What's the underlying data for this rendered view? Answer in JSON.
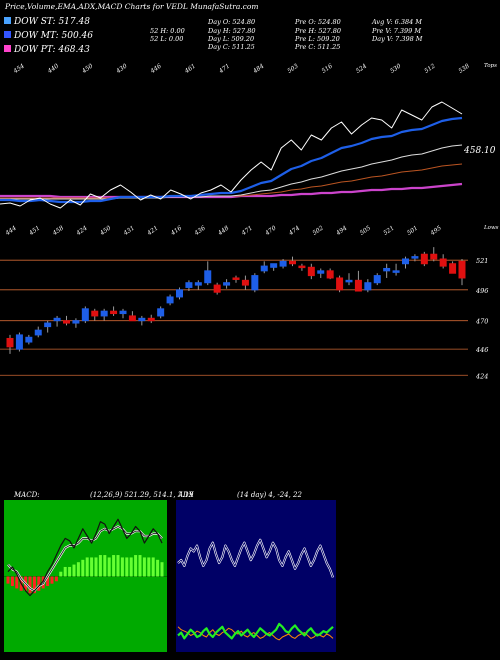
{
  "header": {
    "title": "Price,Volume,EMA,ADX,MACD Charts for VEDL MunafaSutra.com",
    "legend": [
      {
        "label": "DOW ST: 517.48",
        "color": "#4aa3ff"
      },
      {
        "label": "DOW MT: 500.46",
        "color": "#3355ff"
      },
      {
        "label": "DOW PT: 468.43",
        "color": "#ff44cc"
      }
    ],
    "stats": [
      [
        "Day O: 524.80",
        "Pre O: 524.80",
        "Avg V: 6.384 M"
      ],
      [
        "52 H: 0.00",
        "Day H: 527.80",
        "Pre H: 527.80",
        "Pre V: 7.399 M"
      ],
      [
        "52 L: 0.00",
        "Day L: 509.20",
        "Pre L: 509.20",
        "Day V: 7.398 M"
      ],
      [
        "Day C: 511.25",
        "Pre C: 511.25"
      ]
    ]
  },
  "colors": {
    "up": "#1e5fe8",
    "down": "#e01010",
    "price_line": "#ffffff",
    "macd_bg": "#00aa00",
    "adx_bg": "#000066",
    "ref_line": "#cc6633",
    "ema_fast": "#1e5fe8",
    "ema_long": "#cc44cc"
  },
  "chart_data": [
    {
      "type": "line",
      "name": "price_ema_panel",
      "top_labels": [
        "454",
        "440",
        "450",
        "430",
        "446",
        "461",
        "471",
        "484",
        "503",
        "516",
        "524",
        "530",
        "512",
        "538"
      ],
      "right_label": "Tops",
      "value_label": "458.10",
      "price": [
        436,
        437,
        434,
        440,
        442,
        436,
        432,
        440,
        435,
        446,
        442,
        450,
        455,
        448,
        440,
        445,
        441,
        450,
        446,
        441,
        447,
        450,
        455,
        448,
        460,
        470,
        478,
        470,
        492,
        500,
        490,
        505,
        500,
        512,
        518,
        506,
        515,
        522,
        520,
        512,
        530,
        525,
        520,
        533,
        538,
        532,
        526
      ],
      "ema1": [
        440,
        440,
        439,
        439,
        440,
        439,
        438,
        438,
        438,
        439,
        439,
        441,
        443,
        443,
        443,
        443,
        443,
        444,
        444,
        444,
        445,
        446,
        447,
        447,
        449,
        453,
        457,
        459,
        465,
        471,
        474,
        479,
        482,
        487,
        492,
        494,
        497,
        501,
        503,
        504,
        508,
        510,
        511,
        515,
        519,
        521,
        522
      ],
      "ema2": [
        441,
        441,
        441,
        441,
        441,
        441,
        441,
        441,
        441,
        441,
        441,
        441,
        442,
        442,
        442,
        442,
        442,
        443,
        443,
        443,
        443,
        444,
        444,
        444,
        445,
        447,
        449,
        450,
        453,
        456,
        458,
        461,
        463,
        466,
        469,
        471,
        473,
        476,
        478,
        480,
        483,
        485,
        486,
        489,
        492,
        494,
        495
      ],
      "ema3": [
        442,
        442,
        442,
        442,
        442,
        442,
        442,
        442,
        442,
        442,
        442,
        442,
        442,
        443,
        443,
        443,
        443,
        443,
        443,
        443,
        443,
        444,
        444,
        444,
        444,
        445,
        446,
        447,
        448,
        450,
        451,
        453,
        454,
        456,
        458,
        459,
        461,
        463,
        464,
        466,
        468,
        469,
        470,
        472,
        474,
        475,
        476
      ],
      "ema_long": [
        444,
        444,
        444,
        444,
        444,
        444,
        443,
        443,
        443,
        443,
        443,
        443,
        443,
        443,
        443,
        443,
        443,
        443,
        443,
        443,
        443,
        443,
        443,
        443,
        444,
        444,
        444,
        444,
        445,
        445,
        446,
        446,
        447,
        447,
        448,
        448,
        449,
        450,
        450,
        451,
        451,
        452,
        452,
        453,
        454,
        455,
        456
      ],
      "yrange": [
        425,
        545
      ]
    },
    {
      "type": "candlestick",
      "name": "candle_panel",
      "bottom_labels": [
        "444",
        "451",
        "458",
        "424",
        "450",
        "431",
        "421",
        "416",
        "436",
        "448",
        "471",
        "470",
        "474",
        "502",
        "494",
        "505",
        "521",
        "501",
        "495"
      ],
      "right_label": "Lows",
      "yticks": [
        521,
        496,
        470,
        446,
        424
      ],
      "yrange": [
        420,
        538
      ],
      "candles": [
        {
          "o": 455,
          "h": 458,
          "l": 442,
          "c": 448
        },
        {
          "o": 446,
          "h": 460,
          "l": 444,
          "c": 458
        },
        {
          "o": 452,
          "h": 458,
          "l": 450,
          "c": 456
        },
        {
          "o": 458,
          "h": 465,
          "l": 456,
          "c": 462
        },
        {
          "o": 465,
          "h": 470,
          "l": 460,
          "c": 468
        },
        {
          "o": 470,
          "h": 474,
          "l": 465,
          "c": 472
        },
        {
          "o": 470,
          "h": 474,
          "l": 466,
          "c": 468
        },
        {
          "o": 468,
          "h": 472,
          "l": 464,
          "c": 470
        },
        {
          "o": 470,
          "h": 482,
          "l": 468,
          "c": 480
        },
        {
          "o": 478,
          "h": 480,
          "l": 470,
          "c": 474
        },
        {
          "o": 474,
          "h": 480,
          "l": 470,
          "c": 478
        },
        {
          "o": 478,
          "h": 482,
          "l": 474,
          "c": 476
        },
        {
          "o": 476,
          "h": 480,
          "l": 472,
          "c": 478
        },
        {
          "o": 474,
          "h": 478,
          "l": 470,
          "c": 470
        },
        {
          "o": 470,
          "h": 474,
          "l": 466,
          "c": 472
        },
        {
          "o": 472,
          "h": 475,
          "l": 468,
          "c": 470
        },
        {
          "o": 474,
          "h": 482,
          "l": 472,
          "c": 480
        },
        {
          "o": 485,
          "h": 492,
          "l": 483,
          "c": 490
        },
        {
          "o": 490,
          "h": 498,
          "l": 488,
          "c": 496
        },
        {
          "o": 498,
          "h": 504,
          "l": 495,
          "c": 502
        },
        {
          "o": 500,
          "h": 504,
          "l": 496,
          "c": 502
        },
        {
          "o": 502,
          "h": 520,
          "l": 500,
          "c": 512
        },
        {
          "o": 500,
          "h": 502,
          "l": 492,
          "c": 494
        },
        {
          "o": 500,
          "h": 505,
          "l": 497,
          "c": 502
        },
        {
          "o": 506,
          "h": 508,
          "l": 502,
          "c": 505
        },
        {
          "o": 504,
          "h": 508,
          "l": 496,
          "c": 500
        },
        {
          "o": 496,
          "h": 510,
          "l": 494,
          "c": 508
        },
        {
          "o": 512,
          "h": 520,
          "l": 510,
          "c": 516
        },
        {
          "o": 515,
          "h": 518,
          "l": 512,
          "c": 518
        },
        {
          "o": 516,
          "h": 522,
          "l": 514,
          "c": 520
        },
        {
          "o": 520,
          "h": 524,
          "l": 516,
          "c": 518
        },
        {
          "o": 516,
          "h": 518,
          "l": 512,
          "c": 515
        },
        {
          "o": 515,
          "h": 518,
          "l": 505,
          "c": 508
        },
        {
          "o": 510,
          "h": 514,
          "l": 506,
          "c": 512
        },
        {
          "o": 512,
          "h": 514,
          "l": 505,
          "c": 506
        },
        {
          "o": 506,
          "h": 508,
          "l": 494,
          "c": 496
        },
        {
          "o": 504,
          "h": 510,
          "l": 500,
          "c": 504
        },
        {
          "o": 504,
          "h": 512,
          "l": 495,
          "c": 495
        },
        {
          "o": 496,
          "h": 505,
          "l": 494,
          "c": 502
        },
        {
          "o": 502,
          "h": 510,
          "l": 500,
          "c": 508
        },
        {
          "o": 512,
          "h": 518,
          "l": 506,
          "c": 514
        },
        {
          "o": 512,
          "h": 518,
          "l": 508,
          "c": 512
        },
        {
          "o": 518,
          "h": 524,
          "l": 514,
          "c": 522
        },
        {
          "o": 524,
          "h": 526,
          "l": 520,
          "c": 524
        },
        {
          "o": 526,
          "h": 528,
          "l": 516,
          "c": 518
        },
        {
          "o": 526,
          "h": 532,
          "l": 520,
          "c": 522
        },
        {
          "o": 522,
          "h": 526,
          "l": 514,
          "c": 516
        },
        {
          "o": 518,
          "h": 520,
          "l": 510,
          "c": 510
        },
        {
          "o": 520,
          "h": 522,
          "l": 500,
          "c": 506
        }
      ]
    },
    {
      "type": "line",
      "name": "macd_panel",
      "label": "MACD:",
      "params": "(12,26,9) 521.29, 514.1, 7.19",
      "line1": [
        2,
        4,
        1,
        -3,
        -6,
        -8,
        -6,
        -4,
        -2,
        2,
        5,
        9,
        13,
        16,
        15,
        12,
        16,
        20,
        17,
        14,
        18,
        23,
        22,
        18,
        21,
        24,
        20,
        16,
        18,
        21,
        19,
        14,
        17,
        20,
        18,
        14
      ],
      "line2": [
        5,
        3,
        2,
        -1,
        -3,
        -5,
        -6,
        -4,
        -3,
        0,
        3,
        6,
        9,
        12,
        13,
        13,
        14,
        16,
        16,
        15,
        16,
        19,
        20,
        19,
        20,
        21,
        20,
        18,
        18,
        19,
        19,
        17,
        17,
        18,
        18,
        16
      ],
      "hist": [
        -3,
        -4,
        -5,
        -6,
        -6,
        -7,
        -7,
        -6,
        -5,
        -4,
        -3,
        -2,
        2,
        4,
        4,
        5,
        6,
        7,
        8,
        8,
        8,
        9,
        9,
        8,
        9,
        9,
        8,
        8,
        8,
        9,
        9,
        8,
        8,
        8,
        7,
        6
      ],
      "yrange": [
        -30,
        30
      ]
    },
    {
      "type": "line",
      "name": "adx_panel",
      "label": "ADX",
      "params": "(14 day) 4, -24, 22",
      "white": [
        60,
        62,
        58,
        65,
        70,
        68,
        72,
        64,
        58,
        62,
        70,
        74,
        66,
        60,
        64,
        72,
        68,
        62,
        58,
        64,
        70,
        74,
        68,
        62,
        66,
        72,
        76,
        70,
        64,
        68,
        74,
        70,
        62,
        58,
        64,
        68,
        62,
        56,
        60,
        66,
        70,
        64,
        58,
        62,
        68,
        72,
        66,
        60,
        56,
        50
      ],
      "green": [
        10,
        12,
        8,
        11,
        14,
        12,
        9,
        10,
        13,
        15,
        11,
        9,
        12,
        14,
        16,
        12,
        10,
        8,
        11,
        13,
        10,
        12,
        14,
        11,
        9,
        12,
        15,
        13,
        11,
        10,
        12,
        14,
        18,
        16,
        13,
        12,
        15,
        17,
        14,
        12,
        10,
        13,
        15,
        12,
        10,
        11,
        13,
        12,
        14,
        16
      ],
      "orange": [
        16,
        14,
        13,
        12,
        10,
        11,
        13,
        12,
        10,
        9,
        12,
        14,
        11,
        10,
        12,
        13,
        15,
        14,
        12,
        11,
        13,
        10,
        9,
        11,
        12,
        10,
        8,
        9,
        11,
        12,
        10,
        8,
        7,
        9,
        10,
        11,
        9,
        8,
        10,
        11,
        12,
        10,
        8,
        9,
        11,
        10,
        9,
        11,
        10,
        8
      ],
      "yrange": [
        0,
        100
      ]
    }
  ]
}
